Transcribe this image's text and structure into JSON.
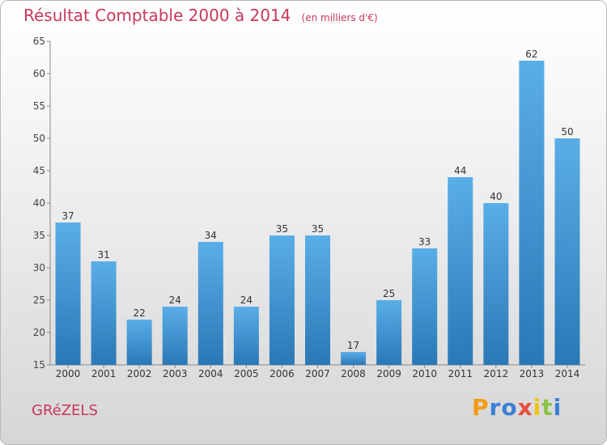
{
  "title": "Résultat Comptable 2000 à 2014",
  "subtitle": "(en milliers d'€)",
  "commune": "GRéZELS",
  "logo": {
    "text": "Proxiti",
    "letters": [
      {
        "ch": "P",
        "color": "#f39c12"
      },
      {
        "ch": "r",
        "color": "#3a7fd5"
      },
      {
        "ch": "o",
        "color": "#3a7fd5"
      },
      {
        "ch": "x",
        "color": "#e74c3c"
      },
      {
        "ch": "i",
        "color": "#f1c40f"
      },
      {
        "ch": "t",
        "color": "#8bc34a"
      },
      {
        "ch": "i",
        "color": "#3a7fd5"
      }
    ]
  },
  "chart_data": {
    "type": "bar",
    "categories": [
      "2000",
      "2001",
      "2002",
      "2003",
      "2004",
      "2005",
      "2006",
      "2007",
      "2008",
      "2009",
      "2010",
      "2011",
      "2012",
      "2013",
      "2014"
    ],
    "values": [
      37,
      31,
      22,
      24,
      34,
      24,
      35,
      35,
      17,
      25,
      33,
      44,
      40,
      62,
      50
    ],
    "ylim": [
      15,
      65
    ],
    "yticks": [
      15,
      20,
      25,
      30,
      35,
      40,
      45,
      50,
      55,
      60,
      65
    ],
    "xlabel": "",
    "ylabel": "",
    "grid": false,
    "bar_color_top": "#5aaee8",
    "bar_color_bottom": "#2a78b6"
  }
}
